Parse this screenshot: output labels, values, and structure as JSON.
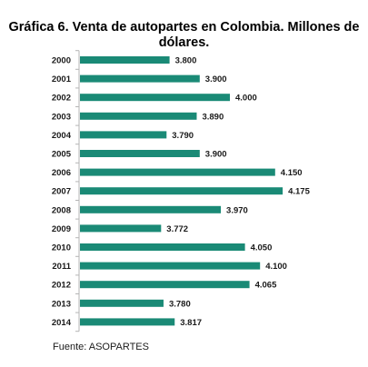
{
  "chart_data": {
    "type": "bar",
    "orientation": "horizontal",
    "title": "Gráfica 6. Venta de autopartes en Colombia. Millones de dólares.",
    "categories": [
      "2000",
      "2001",
      "2002",
      "2003",
      "2004",
      "2005",
      "2006",
      "2007",
      "2008",
      "2009",
      "2010",
      "2011",
      "2012",
      "2013",
      "2014"
    ],
    "values": [
      3800,
      3900,
      4000,
      3890,
      3790,
      3900,
      4150,
      4175,
      3970,
      3772,
      4050,
      4100,
      4065,
      3780,
      3817
    ],
    "value_labels": [
      "3.800",
      "3.900",
      "4.000",
      "3.890",
      "3.790",
      "3.900",
      "4.150",
      "4.175",
      "3.970",
      "3.772",
      "4.050",
      "4.100",
      "4.065",
      "3.780",
      "3.817"
    ],
    "xlim": [
      3500,
      4250
    ],
    "bar_color": "#1a8a76",
    "axis_color": "#b5b5b5",
    "grid": false,
    "source": "Fuente: ASOPARTES"
  }
}
